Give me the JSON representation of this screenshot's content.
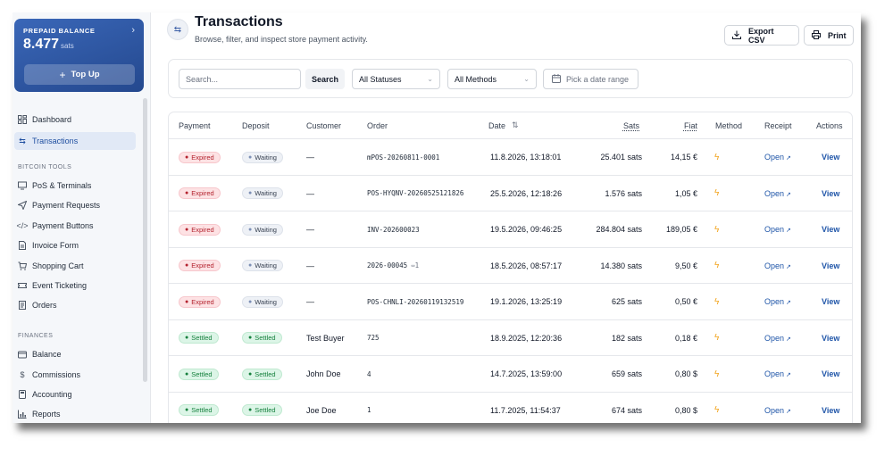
{
  "sidebar": {
    "balance": {
      "title": "PREPAID BALANCE",
      "amount": "8.477",
      "unit": "sats",
      "top_up_label": "Top Up"
    },
    "nav_main": [
      {
        "label": "Dashboard",
        "icon": "dashboard-icon",
        "active": false
      },
      {
        "label": "Transactions",
        "icon": "transactions-icon",
        "active": true
      }
    ],
    "section_bitcoin_tools": "BITCOIN TOOLS",
    "bitcoin_tools": [
      {
        "label": "PoS & Terminals",
        "icon": "monitor-icon"
      },
      {
        "label": "Payment Requests",
        "icon": "send-icon"
      },
      {
        "label": "Payment Buttons",
        "icon": "code-icon"
      },
      {
        "label": "Invoice Form",
        "icon": "document-icon"
      },
      {
        "label": "Shopping Cart",
        "icon": "cart-icon"
      },
      {
        "label": "Event Ticketing",
        "icon": "ticket-icon"
      },
      {
        "label": "Orders",
        "icon": "orders-icon"
      }
    ],
    "section_finances": "FINANCES",
    "finances": [
      {
        "label": "Balance",
        "icon": "wallet-icon"
      },
      {
        "label": "Commissions",
        "icon": "dollar-icon"
      },
      {
        "label": "Accounting",
        "icon": "calculator-icon"
      },
      {
        "label": "Reports",
        "icon": "chart-icon"
      }
    ]
  },
  "header": {
    "title": "Transactions",
    "subtitle": "Browse, filter, and inspect store payment activity.",
    "export_label": "Export CSV",
    "print_label": "Print"
  },
  "filters": {
    "search_placeholder": "Search...",
    "search_button": "Search",
    "status_selected": "All Statuses",
    "method_selected": "All Methods",
    "date_placeholder": "Pick a date range"
  },
  "table": {
    "columns": {
      "payment": "Payment",
      "deposit": "Deposit",
      "customer": "Customer",
      "order": "Order",
      "date": "Date",
      "sats": "Sats",
      "fiat": "Fiat",
      "method": "Method",
      "receipt": "Receipt",
      "actions": "Actions"
    },
    "rows": [
      {
        "payment": "Expired",
        "deposit": "Waiting",
        "customer": "—",
        "order": "mPOS-20260811-0001",
        "order_link": "",
        "date": "11.8.2026, 13:18:01",
        "sats": "25.401 sats",
        "fiat": "14,15 €",
        "receipt": "Open",
        "action": "View"
      },
      {
        "payment": "Expired",
        "deposit": "Waiting",
        "customer": "—",
        "order": "POS-HYQNV-20260525121826",
        "order_link": "",
        "date": "25.5.2026, 12:18:26",
        "sats": "1.576 sats",
        "fiat": "1,05 €",
        "receipt": "Open",
        "action": "View"
      },
      {
        "payment": "Expired",
        "deposit": "Waiting",
        "customer": "—",
        "order": "INV-202600023",
        "order_link": "",
        "date": "19.5.2026, 09:46:25",
        "sats": "284.804 sats",
        "fiat": "189,05 €",
        "receipt": "Open",
        "action": "View"
      },
      {
        "payment": "Expired",
        "deposit": "Waiting",
        "customer": "—",
        "order": "2026-00045",
        "order_link": "⇔1",
        "date": "18.5.2026, 08:57:17",
        "sats": "14.380 sats",
        "fiat": "9,50 €",
        "receipt": "Open",
        "action": "View"
      },
      {
        "payment": "Expired",
        "deposit": "Waiting",
        "customer": "—",
        "order": "POS-CHNLI-20260119132519",
        "order_link": "",
        "date": "19.1.2026, 13:25:19",
        "sats": "625 sats",
        "fiat": "0,50 €",
        "receipt": "Open",
        "action": "View"
      },
      {
        "payment": "Settled",
        "deposit": "Settled",
        "customer": "Test Buyer",
        "order": "725",
        "order_link": "",
        "date": "18.9.2025, 12:20:36",
        "sats": "182 sats",
        "fiat": "0,18 €",
        "receipt": "Open",
        "action": "View"
      },
      {
        "payment": "Settled",
        "deposit": "Settled",
        "customer": "John Doe",
        "order": "4",
        "order_link": "",
        "date": "14.7.2025, 13:59:00",
        "sats": "659 sats",
        "fiat": "0,80 $",
        "receipt": "Open",
        "action": "View"
      },
      {
        "payment": "Settled",
        "deposit": "Settled",
        "customer": "Joe Doe",
        "order": "1",
        "order_link": "",
        "date": "11.7.2025, 11:54:37",
        "sats": "674 sats",
        "fiat": "0,80 $",
        "receipt": "Open",
        "action": "View"
      }
    ]
  },
  "colors": {
    "brand": "#2c56a6",
    "link": "#1f55a8",
    "expired": "#b4232f",
    "settled": "#15803d",
    "lightning": "#f2a31b"
  }
}
